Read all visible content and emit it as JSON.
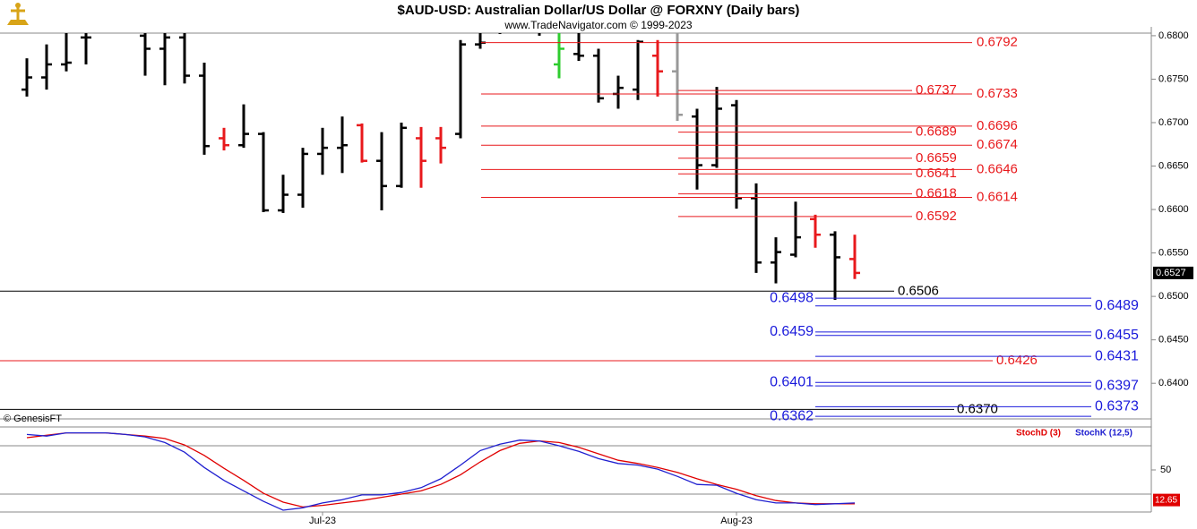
{
  "chart_data": [
    {
      "type": "ohlc",
      "title": "$AUD-USD:  Australian Dollar/US Dollar @ FORXNY  (Daily bars)",
      "subtitle": "www.TradeNavigator.com © 1999-2023",
      "source": "© GenesisFT",
      "categories": [
        null,
        null,
        null,
        null,
        null,
        null,
        null,
        null,
        null,
        null,
        null,
        null,
        null,
        null,
        null,
        "Jul-23",
        null,
        null,
        null,
        null,
        null,
        null,
        null,
        null,
        null,
        null,
        null,
        null,
        null,
        null,
        null,
        null,
        null,
        null,
        null,
        null,
        "Aug-23",
        null,
        null,
        null,
        null,
        null,
        null
      ],
      "open": [
        0.6738,
        0.6752,
        0.6767,
        0.6798,
        0.6815,
        0.6821,
        0.68,
        0.6785,
        0.6798,
        0.6754,
        0.6682,
        0.6674,
        0.6687,
        0.6599,
        0.6617,
        0.6664,
        0.6671,
        0.6697,
        0.6656,
        0.6627,
        0.6682,
        0.6682,
        0.6687,
        0.679,
        0.681,
        0.681,
        0.6815,
        0.6767,
        0.6779,
        0.6777,
        0.6733,
        0.6738,
        0.6777,
        0.6759,
        0.6707,
        0.6651,
        0.672,
        0.6613,
        0.6539,
        0.6548,
        0.6589,
        0.6571,
        0.6543
      ],
      "high": [
        0.6774,
        0.679,
        0.6803,
        0.681,
        0.6831,
        0.6826,
        0.6805,
        0.6803,
        0.6803,
        0.6769,
        0.6694,
        0.6721,
        0.6689,
        0.664,
        0.6671,
        0.6694,
        0.6707,
        0.6699,
        0.6689,
        0.67,
        0.6695,
        0.6695,
        0.6795,
        0.6805,
        0.6821,
        0.6826,
        0.6821,
        0.6803,
        0.681,
        0.6785,
        0.6754,
        0.6795,
        0.6795,
        0.6821,
        0.6716,
        0.6741,
        0.6726,
        0.663,
        0.6568,
        0.6609,
        0.6594,
        0.6575,
        0.6571
      ],
      "low": [
        0.673,
        0.6738,
        0.6759,
        0.6767,
        0.681,
        0.6805,
        0.6754,
        0.6743,
        0.6745,
        0.6663,
        0.6668,
        0.6671,
        0.6597,
        0.6596,
        0.6602,
        0.664,
        0.6642,
        0.6654,
        0.6599,
        0.6625,
        0.6625,
        0.6653,
        0.6682,
        0.6785,
        0.6802,
        0.6805,
        0.68,
        0.6751,
        0.6771,
        0.6723,
        0.6716,
        0.6726,
        0.673,
        0.6702,
        0.6623,
        0.6648,
        0.6601,
        0.6527,
        0.6515,
        0.6545,
        0.6556,
        0.6496,
        0.652
      ],
      "close": [
        0.6752,
        0.6767,
        0.6769,
        0.6798,
        0.6821,
        0.681,
        0.6785,
        0.6798,
        0.6754,
        0.6673,
        0.6674,
        0.6687,
        0.6599,
        0.6617,
        0.6664,
        0.6671,
        0.6674,
        0.6656,
        0.6627,
        0.6694,
        0.6656,
        0.6671,
        0.679,
        0.6792,
        0.6815,
        0.6821,
        0.681,
        0.6785,
        0.6777,
        0.6728,
        0.674,
        0.6793,
        0.6759,
        0.6709,
        0.6651,
        0.6716,
        0.6613,
        0.6539,
        0.6551,
        0.6568,
        0.6571,
        0.6545,
        0.6527
      ],
      "colors": [
        "#000",
        "#000",
        "#000",
        "#000",
        "#000",
        "#000",
        "#000",
        "#000",
        "#000",
        "#000",
        "#e8191c",
        "#000",
        "#000",
        "#000",
        "#000",
        "#000",
        "#000",
        "#e8191c",
        "#000",
        "#000",
        "#e8191c",
        "#e8191c",
        "#000",
        "#000",
        "#000",
        "#000",
        "#000",
        "#2ecc2e",
        "#000",
        "#000",
        "#000",
        "#000",
        "#e8191c",
        "#999999",
        "#000",
        "#000",
        "#000",
        "#000",
        "#000",
        "#000",
        "#e8191c",
        "#000",
        "#e8191c"
      ],
      "ylim": [
        0.6359,
        0.6803
      ],
      "yticks": [
        {
          "value": 0.68,
          "label": "0.6800"
        },
        {
          "value": 0.675,
          "label": "0.6750"
        },
        {
          "value": 0.67,
          "label": "0.6700"
        },
        {
          "value": 0.665,
          "label": "0.6650"
        },
        {
          "value": 0.66,
          "label": "0.6600"
        },
        {
          "value": 0.655,
          "label": "0.6550"
        },
        {
          "value": 0.65,
          "label": "0.6500"
        },
        {
          "value": 0.645,
          "label": "0.6450"
        },
        {
          "value": 0.64,
          "label": "0.6400"
        }
      ],
      "last_value": 0.6527,
      "levels": [
        {
          "value": 0.6792,
          "color": "#e8191c"
        },
        {
          "value": 0.6737,
          "color": "#e8191c"
        },
        {
          "value": 0.6733,
          "color": "#e8191c"
        },
        {
          "value": 0.6696,
          "color": "#e8191c"
        },
        {
          "value": 0.6689,
          "color": "#e8191c"
        },
        {
          "value": 0.6674,
          "color": "#e8191c"
        },
        {
          "value": 0.6659,
          "color": "#e8191c"
        },
        {
          "value": 0.6646,
          "color": "#e8191c"
        },
        {
          "value": 0.6641,
          "color": "#e8191c"
        },
        {
          "value": 0.6618,
          "color": "#e8191c"
        },
        {
          "value": 0.6614,
          "color": "#e8191c"
        },
        {
          "value": 0.6592,
          "color": "#e8191c"
        },
        {
          "value": 0.6426,
          "color": "#e8191c"
        },
        {
          "value": 0.6506,
          "color": "#000000"
        },
        {
          "value": 0.637,
          "label": "0.6370",
          "color": "#000000"
        },
        {
          "value": 0.6498,
          "color": "#1a1adb"
        },
        {
          "value": 0.6489,
          "color": "#1a1adb"
        },
        {
          "value": 0.6459,
          "color": "#1a1adb"
        },
        {
          "value": 0.6455,
          "color": "#1a1adb"
        },
        {
          "value": 0.6431,
          "color": "#1a1adb"
        },
        {
          "value": 0.6401,
          "color": "#1a1adb"
        },
        {
          "value": 0.6397,
          "color": "#1a1adb"
        },
        {
          "value": 0.6373,
          "color": "#1a1adb"
        },
        {
          "value": 0.6362,
          "color": "#1a1adb"
        }
      ]
    },
    {
      "type": "line",
      "series": [
        {
          "name": "StochD (3)",
          "color": "#e00000",
          "values": [
            90,
            93,
            96,
            96,
            96,
            94,
            92,
            89,
            81,
            68,
            52,
            37,
            21,
            10,
            4,
            6,
            9,
            12,
            16,
            20,
            24,
            32,
            44,
            60,
            74,
            83,
            86,
            84,
            78,
            70,
            62,
            58,
            53,
            47,
            39,
            32,
            26,
            18,
            12,
            9,
            8,
            8,
            8
          ]
        },
        {
          "name": "StochK (12,5)",
          "color": "#2020d0",
          "values": [
            94,
            92,
            96,
            96,
            96,
            94,
            91,
            84,
            72,
            53,
            37,
            24,
            11,
            0,
            3,
            9,
            13,
            19,
            19,
            22,
            28,
            39,
            56,
            74,
            82,
            87,
            86,
            80,
            73,
            64,
            58,
            56,
            51,
            42,
            32,
            31,
            21,
            13,
            9,
            9,
            7,
            8,
            9
          ]
        }
      ],
      "ylim": [
        0,
        100
      ],
      "yticks": [
        50
      ],
      "reference_lines": [
        80,
        20
      ],
      "last_value": 12.65
    }
  ]
}
